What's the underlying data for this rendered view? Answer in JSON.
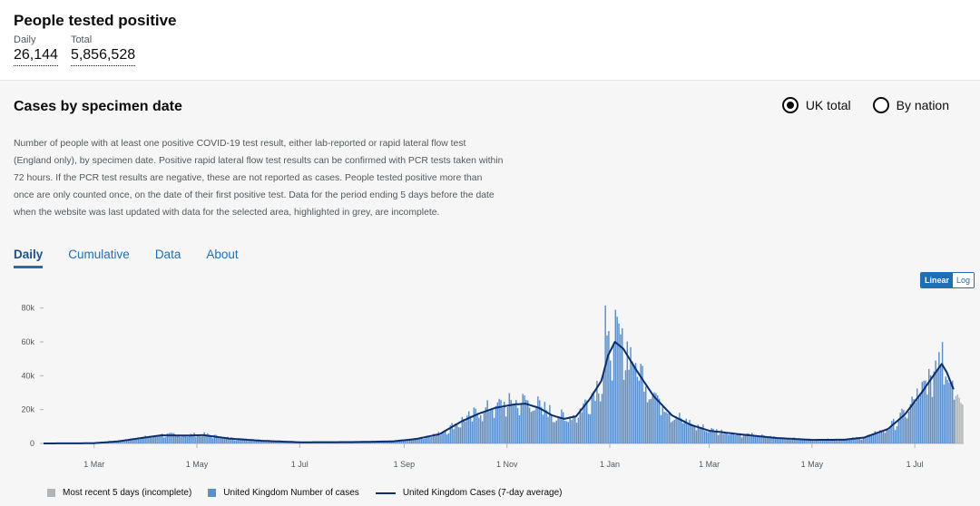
{
  "header": {
    "title": "People tested positive",
    "daily_label": "Daily",
    "daily_value": "26,144",
    "total_label": "Total",
    "total_value": "5,856,528"
  },
  "card": {
    "title": "Cases by specimen date",
    "radio_uk": "UK total",
    "radio_nation": "By nation",
    "description": "Number of people with at least one positive COVID-19 test result, either lab-reported or rapid lateral flow test (England only), by specimen date. Positive rapid lateral flow test results can be confirmed with PCR tests taken within 72 hours. If the PCR test results are negative, these are not reported as cases. People tested positive more than once are only counted once, on the date of their first positive test. Data for the period ending 5 days before the date when the website was last updated with data for the selected area, highlighted in grey, are incomplete.",
    "tabs": [
      "Daily",
      "Cumulative",
      "Data",
      "About"
    ],
    "scale_linear": "Linear",
    "scale_log": "Log"
  },
  "colors": {
    "bar": "#5b8fcc",
    "line": "#0b2f6e",
    "incomplete": "#b1b4b6",
    "accent": "#1d70b8"
  },
  "chart_data": {
    "type": "bar",
    "y_ticks": [
      "0",
      "20k",
      "40k",
      "60k",
      "80k"
    ],
    "ylim": [
      0,
      85000
    ],
    "x_ticks": [
      "1 Mar",
      "1 May",
      "1 Jul",
      "1 Sep",
      "1 Nov",
      "1 Jan",
      "1 Mar",
      "1 May",
      "1 Jul"
    ],
    "x_range": [
      "2020-01-31",
      "2021-07-24"
    ],
    "series": [
      {
        "name": "United Kingdom Number of cases",
        "kind": "bar"
      },
      {
        "name": "United Kingdom Cases (7-day average)",
        "kind": "line"
      },
      {
        "name": "Most recent 5 days (incomplete)",
        "kind": "bar"
      }
    ],
    "trend": [
      [
        "2020-01-31",
        0
      ],
      [
        "2020-02-29",
        100
      ],
      [
        "2020-03-15",
        1200
      ],
      [
        "2020-03-31",
        3500
      ],
      [
        "2020-04-10",
        4800
      ],
      [
        "2020-04-25",
        4700
      ],
      [
        "2020-05-05",
        4900
      ],
      [
        "2020-05-20",
        2900
      ],
      [
        "2020-06-10",
        1500
      ],
      [
        "2020-07-01",
        700
      ],
      [
        "2020-08-01",
        800
      ],
      [
        "2020-08-25",
        1200
      ],
      [
        "2020-09-08",
        2600
      ],
      [
        "2020-09-22",
        5500
      ],
      [
        "2020-10-05",
        13000
      ],
      [
        "2020-10-15",
        17500
      ],
      [
        "2020-10-25",
        21000
      ],
      [
        "2020-11-05",
        23000
      ],
      [
        "2020-11-12",
        23500
      ],
      [
        "2020-11-20",
        21000
      ],
      [
        "2020-11-28",
        16500
      ],
      [
        "2020-12-05",
        14500
      ],
      [
        "2020-12-12",
        16000
      ],
      [
        "2020-12-20",
        26000
      ],
      [
        "2020-12-27",
        37000
      ],
      [
        "2020-12-31",
        52000
      ],
      [
        "2021-01-04",
        60000
      ],
      [
        "2021-01-09",
        56000
      ],
      [
        "2021-01-17",
        43000
      ],
      [
        "2021-01-27",
        28000
      ],
      [
        "2021-02-07",
        16500
      ],
      [
        "2021-02-18",
        11000
      ],
      [
        "2021-03-01",
        7500
      ],
      [
        "2021-03-20",
        5300
      ],
      [
        "2021-04-10",
        3200
      ],
      [
        "2021-05-01",
        2100
      ],
      [
        "2021-05-20",
        2200
      ],
      [
        "2021-06-01",
        3500
      ],
      [
        "2021-06-15",
        8500
      ],
      [
        "2021-06-25",
        17000
      ],
      [
        "2021-07-05",
        30000
      ],
      [
        "2021-07-12",
        40000
      ],
      [
        "2021-07-17",
        47000
      ],
      [
        "2021-07-20",
        42000
      ],
      [
        "2021-07-24",
        32000
      ]
    ],
    "bars": [
      [
        "2020-12-29",
        81500
      ],
      [
        "2021-01-04",
        79000
      ],
      [
        "2021-01-08",
        68000
      ],
      [
        "2021-07-17",
        60000
      ],
      [
        "2021-07-15",
        54000
      ],
      [
        "2021-07-13",
        49000
      ]
    ],
    "incomplete_bars": [
      [
        "2021-07-25",
        28000
      ],
      [
        "2021-07-26",
        29000
      ],
      [
        "2021-07-27",
        27000
      ],
      [
        "2021-07-28",
        24000
      ],
      [
        "2021-07-29",
        23000
      ]
    ]
  }
}
